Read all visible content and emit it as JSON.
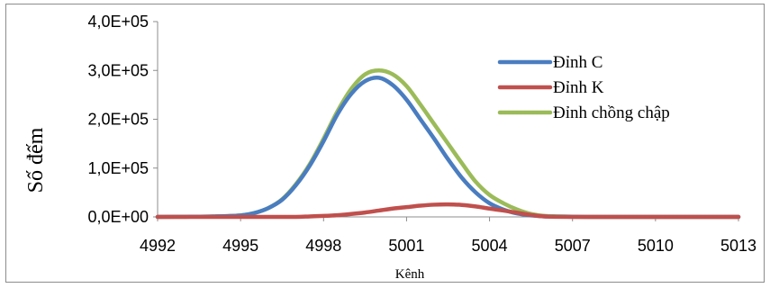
{
  "chart_data": {
    "type": "line",
    "title": "",
    "xlabel": "Kênh",
    "ylabel": "Số đếm",
    "xlim": [
      4992,
      5013
    ],
    "ylim": [
      0,
      400000
    ],
    "x_ticks": [
      "4992",
      "4995",
      "4998",
      "5001",
      "5004",
      "5007",
      "5010",
      "5013"
    ],
    "x_tick_values": [
      4992,
      4995,
      4998,
      5001,
      5004,
      5007,
      5010,
      5013
    ],
    "y_ticks": [
      "0,0E+00",
      "1,0E+05",
      "2,0E+05",
      "3,0E+05",
      "4,0E+05"
    ],
    "y_tick_values": [
      0,
      100000,
      200000,
      300000,
      400000
    ],
    "grid": false,
    "legend_position": "right",
    "series": [
      {
        "name": "Đỉnh C",
        "color": "#4a7dc0",
        "x": [
          4992,
          4993,
          4994,
          4995,
          4995.5,
          4996,
          4996.5,
          4997,
          4997.5,
          4998,
          4998.5,
          4999,
          4999.5,
          5000,
          5000.5,
          5001,
          5001.5,
          5002,
          5002.5,
          5003,
          5003.5,
          5004,
          5004.5,
          5005,
          5005.5,
          5006,
          5007,
          5008,
          5013
        ],
        "y": [
          0,
          300,
          1000,
          3000,
          8000,
          18000,
          35000,
          65000,
          105000,
          155000,
          210000,
          252000,
          278000,
          285000,
          270000,
          240000,
          200000,
          160000,
          118000,
          80000,
          50000,
          28000,
          15000,
          7000,
          3000,
          1000,
          300,
          0,
          0
        ]
      },
      {
        "name": "Đỉnh K",
        "color": "#c0504d",
        "x": [
          4992,
          4996,
          4997,
          4997.5,
          4998,
          4998.5,
          4999,
          4999.5,
          5000,
          5000.5,
          5001,
          5001.5,
          5002,
          5002.5,
          5003,
          5003.5,
          5004,
          5004.5,
          5005,
          5005.5,
          5006,
          5007,
          5013
        ],
        "y": [
          0,
          0,
          0,
          1000,
          2000,
          3500,
          6000,
          9000,
          13000,
          17000,
          20000,
          23000,
          25000,
          25500,
          24500,
          21500,
          17000,
          13000,
          8500,
          4000,
          1000,
          0,
          0
        ],
        "smooth_line": true
      },
      {
        "name": "Đỉnh chồng chập",
        "color": "#9bbb59",
        "x": [
          4992,
          4993,
          4994,
          4995,
          4995.5,
          4996,
          4996.5,
          4997,
          4997.5,
          4998,
          4998.5,
          4999,
          4999.5,
          5000,
          5000.5,
          5001,
          5001.5,
          5002,
          5002.5,
          5003,
          5003.5,
          5004,
          5004.5,
          5005,
          5005.5,
          5006,
          5007,
          5008,
          5013
        ],
        "y": [
          0,
          300,
          1000,
          3000,
          8000,
          18000,
          36000,
          67000,
          108000,
          160000,
          216000,
          262000,
          292000,
          300000,
          292000,
          268000,
          230000,
          190000,
          150000,
          110000,
          72000,
          45000,
          28000,
          15000,
          6000,
          2000,
          500,
          0,
          0
        ]
      }
    ]
  }
}
